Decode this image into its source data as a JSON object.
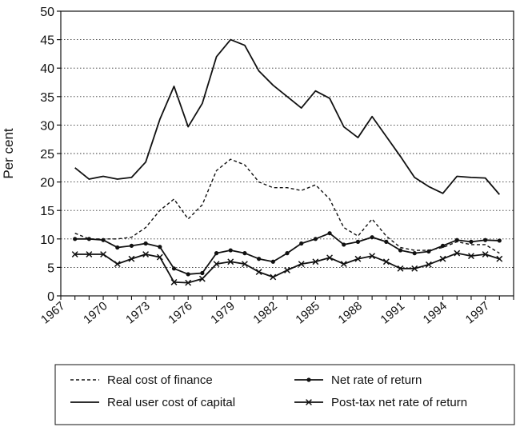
{
  "chart_data": {
    "type": "line",
    "title": "",
    "xlabel": "",
    "ylabel": "Per cent",
    "ylim": [
      0,
      50
    ],
    "yticks": [
      0,
      5,
      10,
      15,
      20,
      25,
      30,
      35,
      40,
      45,
      50
    ],
    "xlim": [
      1967,
      1999
    ],
    "xticks": [
      "1967",
      "1970",
      "1973",
      "1976",
      "1979",
      "1982",
      "1985",
      "1988",
      "1991",
      "1994",
      "1997"
    ],
    "x": [
      1968,
      1969,
      1970,
      1971,
      1972,
      1973,
      1974,
      1975,
      1976,
      1977,
      1978,
      1979,
      1980,
      1981,
      1982,
      1983,
      1984,
      1985,
      1986,
      1987,
      1988,
      1989,
      1990,
      1991,
      1992,
      1993,
      1994,
      1995,
      1996,
      1997,
      1998
    ],
    "grid": "horizontal dotted",
    "legend_position": "bottom",
    "series": [
      {
        "name": "Real cost of finance",
        "style": "dashed",
        "marker": "none",
        "values": [
          11,
          10,
          10,
          10,
          10.3,
          12,
          15,
          17,
          13.5,
          16,
          22,
          24,
          23,
          20,
          19,
          19,
          18.5,
          19.5,
          17,
          12,
          10.5,
          13.5,
          10.5,
          8.5,
          8,
          8,
          8.5,
          9.5,
          9,
          9,
          7.5
        ]
      },
      {
        "name": "Real user cost of capital",
        "style": "solid",
        "marker": "none",
        "values": [
          22.5,
          20.5,
          21,
          20.5,
          20.8,
          23.5,
          31,
          36.8,
          29.7,
          33.8,
          42,
          45,
          44,
          39.5,
          37,
          35,
          33,
          36,
          34.7,
          29.7,
          27.8,
          31.5,
          28,
          24.5,
          20.8,
          19.2,
          18,
          21,
          20.8,
          20.7,
          17.8
        ]
      },
      {
        "name": "Net rate of return",
        "style": "solid",
        "marker": "dot",
        "values": [
          10,
          10,
          9.8,
          8.5,
          8.8,
          9.2,
          8.6,
          4.8,
          3.8,
          4,
          7.5,
          8,
          7.5,
          6.5,
          6,
          7.5,
          9.2,
          10,
          11,
          9,
          9.5,
          10.3,
          9.5,
          8,
          7.5,
          7.8,
          8.8,
          9.8,
          9.5,
          9.8,
          9.7
        ]
      },
      {
        "name": "Post-tax net rate of return",
        "style": "solid",
        "marker": "x",
        "values": [
          7.3,
          7.3,
          7.3,
          5.6,
          6.5,
          7.3,
          6.8,
          2.4,
          2.3,
          3,
          5.6,
          6,
          5.6,
          4.2,
          3.3,
          4.5,
          5.6,
          6,
          6.7,
          5.6,
          6.5,
          7,
          6,
          4.8,
          4.8,
          5.5,
          6.5,
          7.5,
          7,
          7.3,
          6.5
        ]
      }
    ]
  }
}
